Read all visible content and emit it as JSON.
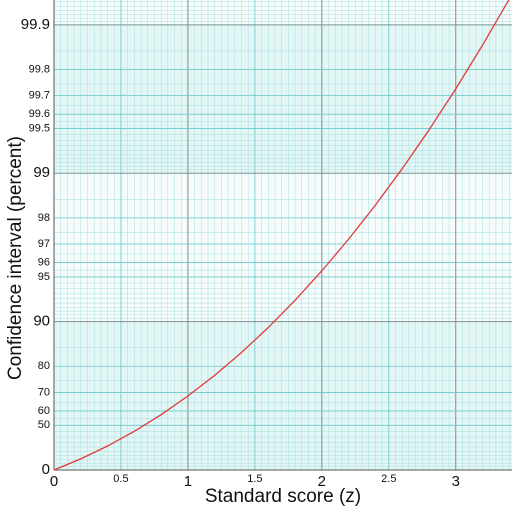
{
  "chart_data": {
    "type": "line",
    "x_label": "Standard score (z)",
    "y_label": "Confidence interval (percent)",
    "yscale": "log-complement",
    "grid": true,
    "x": [
      0,
      0.2,
      0.4,
      0.6,
      0.8,
      1.0,
      1.2,
      1.4,
      1.6,
      1.8,
      2.0,
      2.2,
      2.4,
      2.6,
      2.8,
      3.0,
      3.2,
      3.4
    ],
    "series": [
      {
        "color": "#e23a3a",
        "values": [
          0,
          15.85,
          31.08,
          45.15,
          57.63,
          68.27,
          76.99,
          83.85,
          89.04,
          92.81,
          95.45,
          97.22,
          98.36,
          99.068,
          99.489,
          99.73,
          99.863,
          99.933
        ]
      }
    ],
    "xlim": [
      0,
      3.42
    ],
    "ylim": [
      0,
      99.932
    ],
    "xticks": [
      0,
      0.5,
      1,
      1.5,
      2,
      2.5,
      3
    ],
    "yticks": [
      0,
      50,
      60,
      70,
      80,
      90,
      95,
      96,
      97,
      98,
      99,
      99.5,
      99.6,
      99.7,
      99.8,
      99.9
    ]
  }
}
